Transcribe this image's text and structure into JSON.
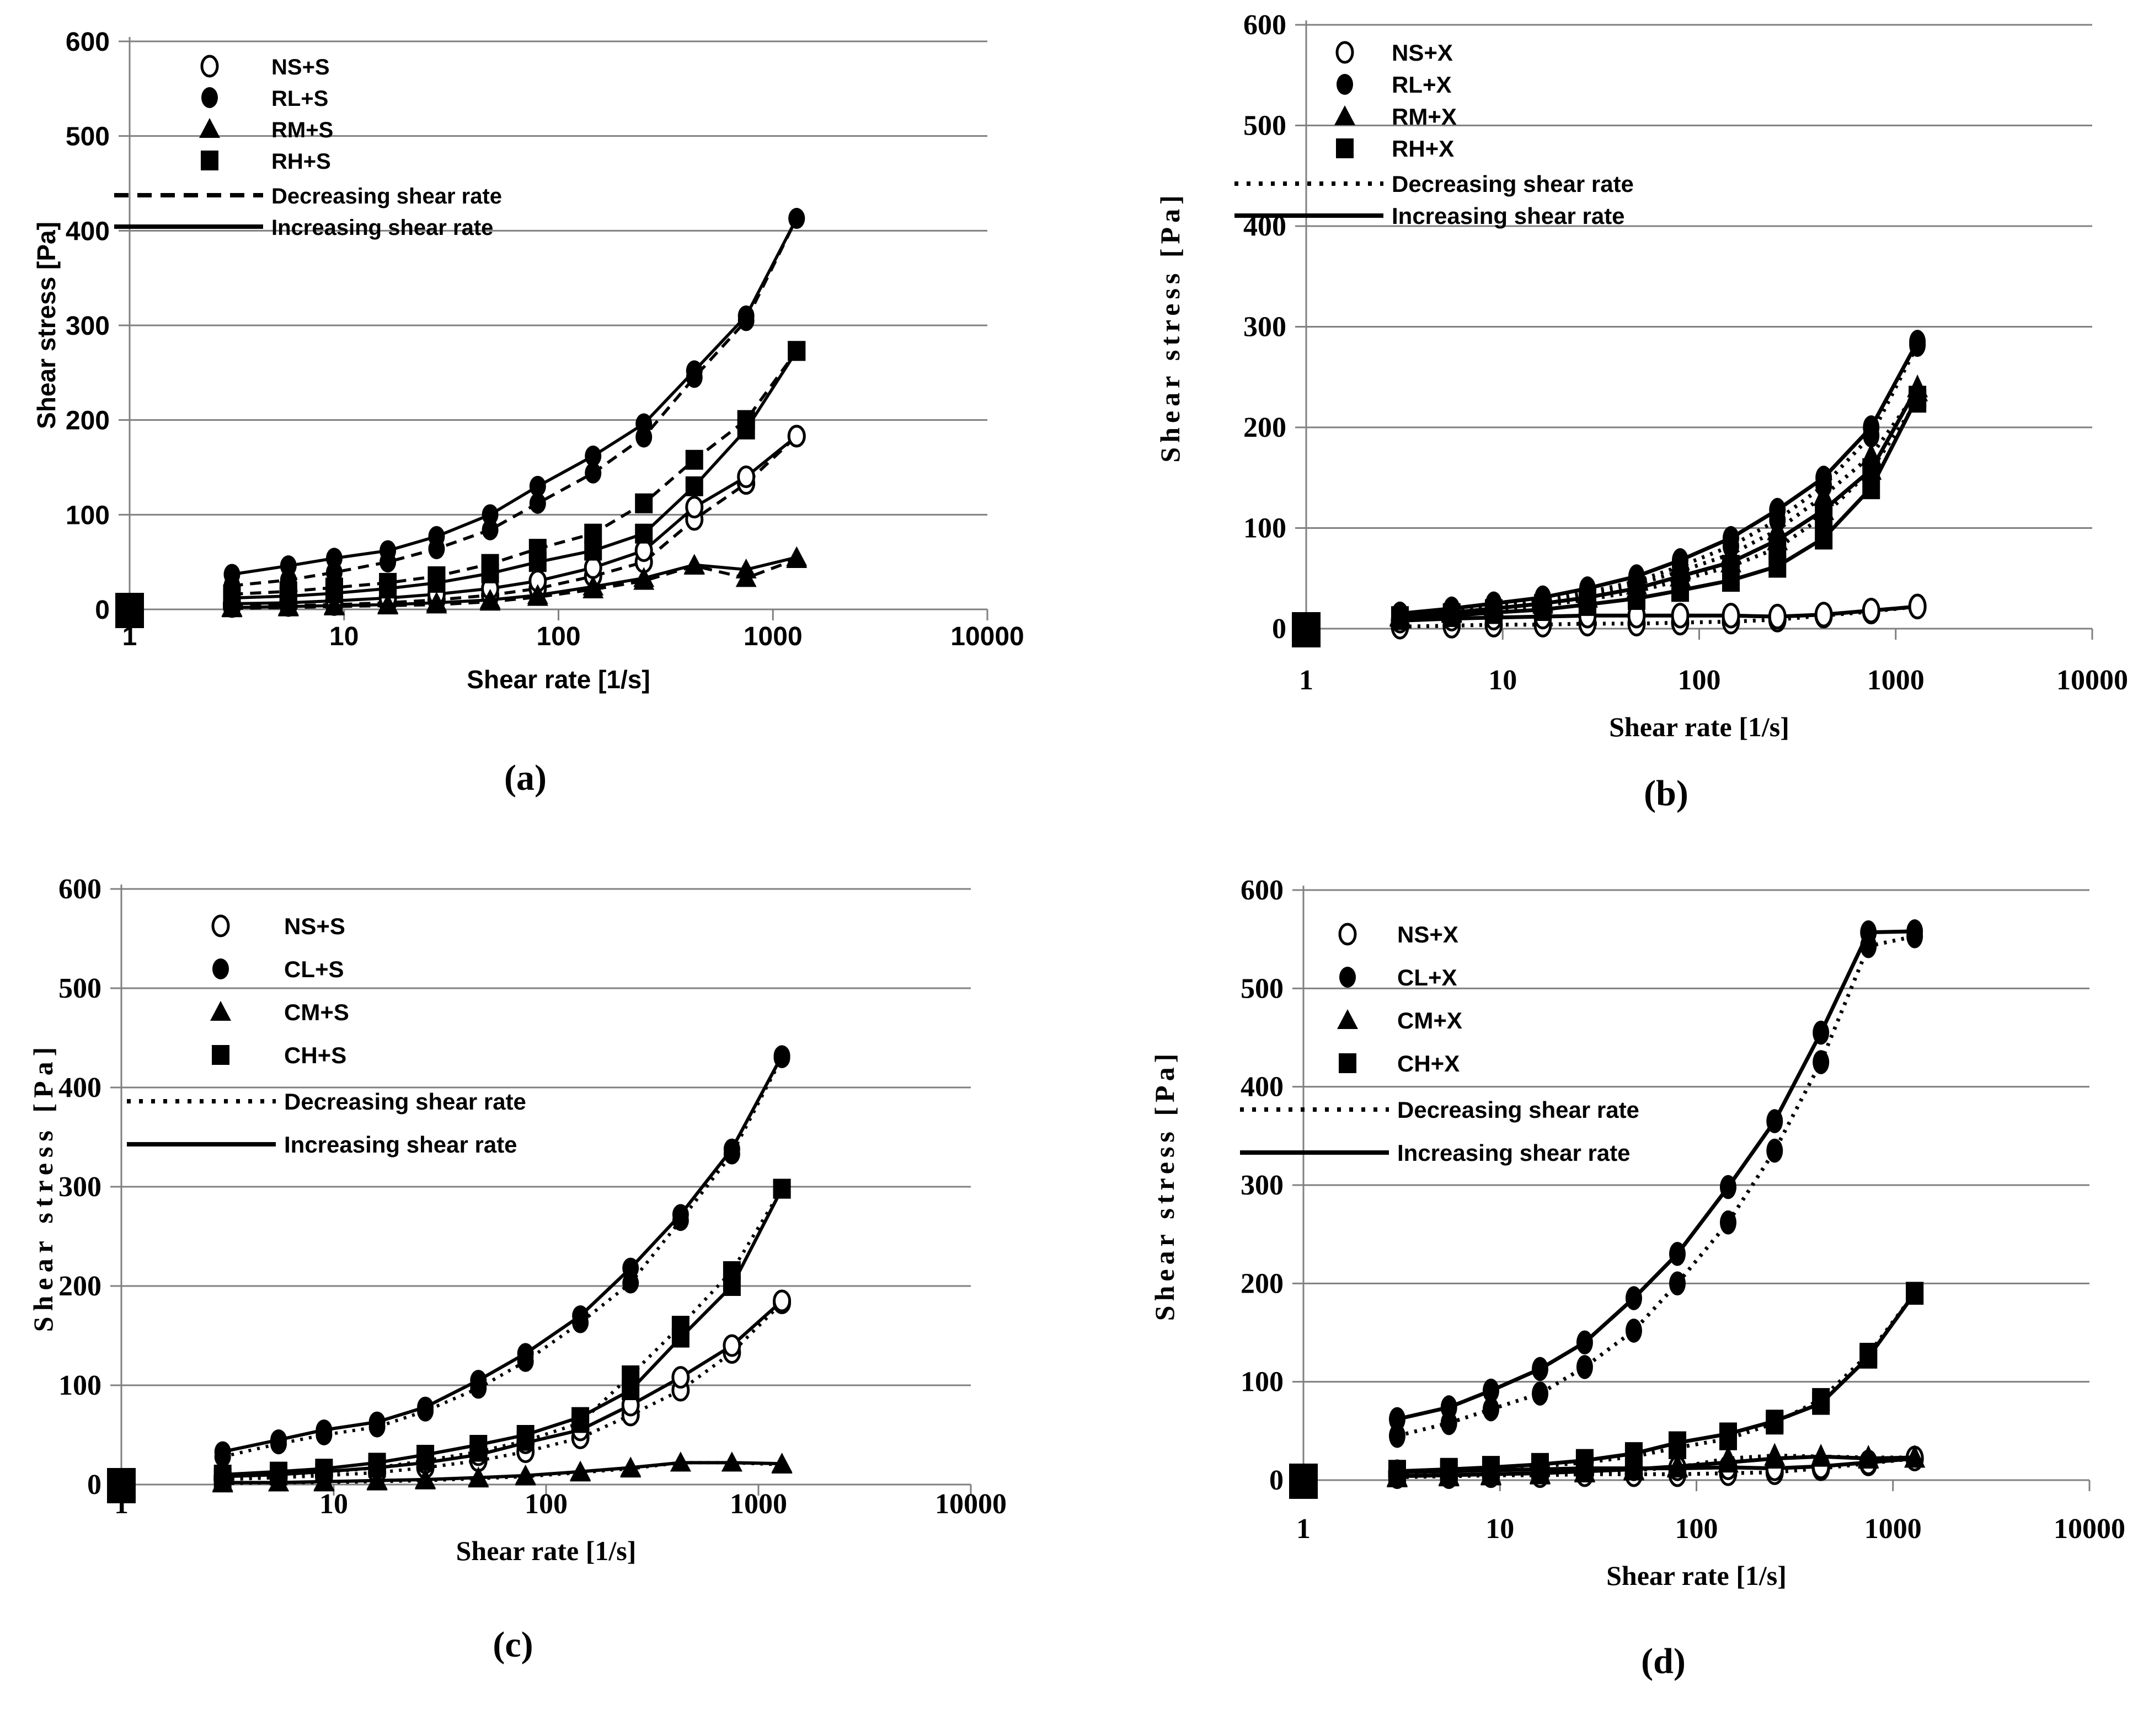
{
  "figure": {
    "background": "#ffffff",
    "line_color": "#000000",
    "grid_color": "#808080",
    "text_color": "#000000"
  },
  "chart_data": [
    {
      "type": "line",
      "panel_id": "a",
      "caption": "(a)",
      "xlabel": "Shear rate [1/s]",
      "ylabel": "Shear stress [Pa]",
      "xscale": "log",
      "xlim": [
        1,
        10000
      ],
      "ylim": [
        0,
        600
      ],
      "xticks": [
        1,
        10,
        100,
        1000,
        10000
      ],
      "yticks": [
        0,
        100,
        200,
        300,
        400,
        500,
        600
      ],
      "grid": "horizontal-only",
      "legend_position": "upper-left-inside",
      "legend_line_styles": [
        {
          "label": "Decreasing shear rate",
          "style": "dashed"
        },
        {
          "label": "Increasing shear rate",
          "style": "solid"
        }
      ],
      "x": [
        3,
        5.5,
        9,
        16,
        27,
        48,
        80,
        145,
        250,
        430,
        750,
        1290
      ],
      "origin_marker": {
        "x": 1,
        "y": 0,
        "marker": "square"
      },
      "series": [
        {
          "name": "NS+S",
          "marker": "circle-open",
          "increasing": [
            6,
            7,
            9,
            12,
            16,
            22,
            30,
            44,
            62,
            108,
            140,
            183
          ],
          "decreasing": [
            3,
            4,
            5,
            7,
            10,
            15,
            22,
            35,
            50,
            95,
            133,
            183
          ]
        },
        {
          "name": "RL+S",
          "marker": "circle",
          "increasing": [
            37,
            46,
            54,
            62,
            77,
            100,
            130,
            162,
            196,
            252,
            310,
            413
          ],
          "decreasing": [
            25,
            31,
            39,
            50,
            64,
            84,
            112,
            144,
            182,
            245,
            305,
            413
          ]
        },
        {
          "name": "RM+S",
          "marker": "triangle",
          "increasing": [
            2,
            3,
            4,
            5,
            7,
            10,
            15,
            24,
            33,
            47,
            42,
            55
          ],
          "decreasing": [
            1,
            2,
            3,
            4,
            5,
            8,
            13,
            21,
            30,
            46,
            33,
            53
          ]
        },
        {
          "name": "RH+S",
          "marker": "square",
          "increasing": [
            12,
            14,
            17,
            22,
            28,
            38,
            50,
            62,
            80,
            130,
            190,
            273
          ],
          "decreasing": [
            16,
            19,
            23,
            28,
            35,
            48,
            64,
            80,
            112,
            158,
            200,
            273
          ]
        }
      ]
    },
    {
      "type": "line",
      "panel_id": "b",
      "caption": "(b)",
      "xlabel": "Shear rate [1/s]",
      "ylabel": "Shear stress [Pa]",
      "xscale": "log",
      "xlim": [
        1,
        10000
      ],
      "ylim": [
        0,
        600
      ],
      "xticks": [
        1,
        10,
        100,
        1000,
        10000
      ],
      "yticks": [
        0,
        100,
        200,
        300,
        400,
        500,
        600
      ],
      "grid": "horizontal-only",
      "legend_position": "upper-left-inside",
      "legend_line_styles": [
        {
          "label": "Decreasing shear rate",
          "style": "dashed"
        },
        {
          "label": "Increasing shear rate",
          "style": "solid"
        }
      ],
      "x": [
        3,
        5.5,
        9,
        16,
        27,
        48,
        80,
        145,
        250,
        430,
        750,
        1290
      ],
      "origin_marker": {
        "x": 1,
        "y": 0,
        "marker": "square"
      },
      "series": [
        {
          "name": "NS+X",
          "marker": "circle-open",
          "increasing": [
            8,
            10,
            11,
            12,
            13,
            13,
            13,
            13,
            12,
            14,
            18,
            22
          ],
          "decreasing": [
            2,
            3,
            4,
            4,
            5,
            5,
            6,
            7,
            9,
            13,
            17,
            22
          ]
        },
        {
          "name": "RL+X",
          "marker": "circle",
          "increasing": [
            15,
            20,
            25,
            31,
            40,
            52,
            68,
            90,
            118,
            150,
            200,
            285
          ],
          "decreasing": [
            13,
            18,
            23,
            28,
            36,
            47,
            62,
            82,
            108,
            142,
            192,
            282
          ]
        },
        {
          "name": "RM+X",
          "marker": "triangle",
          "increasing": [
            12,
            16,
            20,
            25,
            31,
            40,
            52,
            66,
            88,
            118,
            158,
            240
          ],
          "decreasing": [
            13,
            17,
            22,
            27,
            34,
            44,
            57,
            74,
            98,
            132,
            172,
            236
          ]
        },
        {
          "name": "RH+X",
          "marker": "square",
          "increasing": [
            10,
            13,
            16,
            19,
            24,
            30,
            38,
            48,
            62,
            90,
            140,
            230
          ],
          "decreasing": [
            11,
            14,
            18,
            23,
            29,
            37,
            48,
            62,
            80,
            112,
            158,
            226
          ]
        }
      ]
    },
    {
      "type": "line",
      "panel_id": "c",
      "caption": "(c)",
      "xlabel": "Shear rate [1/s]",
      "ylabel": "Shear stress [Pa]",
      "xscale": "log",
      "xlim": [
        1,
        10000
      ],
      "ylim": [
        0,
        600
      ],
      "xticks": [
        1,
        10,
        100,
        1000,
        10000
      ],
      "yticks": [
        0,
        100,
        200,
        300,
        400,
        500,
        600
      ],
      "grid": "horizontal-only",
      "legend_position": "upper-left-inside",
      "legend_line_styles": [
        {
          "label": "Decreasing shear rate",
          "style": "dashed"
        },
        {
          "label": "Increasing shear rate",
          "style": "solid"
        }
      ],
      "x": [
        3,
        5.5,
        9,
        16,
        27,
        48,
        80,
        145,
        250,
        430,
        750,
        1290
      ],
      "origin_marker": {
        "x": 1,
        "y": 0,
        "marker": "square"
      },
      "series": [
        {
          "name": "NS+S",
          "marker": "circle-open",
          "increasing": [
            8,
            10,
            13,
            17,
            22,
            30,
            42,
            55,
            80,
            108,
            140,
            185
          ],
          "decreasing": [
            5,
            7,
            9,
            12,
            17,
            24,
            33,
            47,
            70,
            95,
            133,
            183
          ]
        },
        {
          "name": "CL+S",
          "marker": "circle",
          "increasing": [
            33,
            45,
            55,
            63,
            78,
            105,
            132,
            170,
            218,
            272,
            338,
            432
          ],
          "decreasing": [
            28,
            41,
            50,
            58,
            74,
            97,
            124,
            163,
            203,
            266,
            333,
            430
          ]
        },
        {
          "name": "CM+S",
          "marker": "triangle",
          "increasing": [
            2,
            2,
            3,
            4,
            5,
            7,
            9,
            13,
            17,
            22,
            22,
            21
          ],
          "decreasing": [
            1,
            2,
            2,
            3,
            4,
            6,
            8,
            12,
            16,
            22,
            22,
            20
          ]
        },
        {
          "name": "CH+S",
          "marker": "square",
          "increasing": [
            10,
            13,
            16,
            22,
            30,
            40,
            50,
            68,
            95,
            148,
            200,
            298
          ],
          "decreasing": [
            6,
            9,
            12,
            17,
            24,
            33,
            44,
            62,
            110,
            160,
            215,
            298
          ]
        }
      ]
    },
    {
      "type": "line",
      "panel_id": "d",
      "caption": "(d)",
      "xlabel": "Shear rate [1/s]",
      "ylabel": "Shear stress [Pa]",
      "xscale": "log",
      "xlim": [
        1,
        10000
      ],
      "ylim": [
        0,
        600
      ],
      "xticks": [
        1,
        10,
        100,
        1000,
        10000
      ],
      "yticks": [
        0,
        100,
        200,
        300,
        400,
        500,
        600
      ],
      "grid": "horizontal-only",
      "legend_position": "upper-left-inside",
      "legend_line_styles": [
        {
          "label": "Decreasing shear rate",
          "style": "dashed"
        },
        {
          "label": "Increasing shear rate",
          "style": "solid"
        }
      ],
      "x": [
        3,
        5.5,
        9,
        16,
        27,
        48,
        80,
        145,
        250,
        430,
        750,
        1290
      ],
      "origin_marker": {
        "x": 1,
        "y": 0,
        "marker": "square"
      },
      "series": [
        {
          "name": "NS+X",
          "marker": "circle-open",
          "increasing": [
            8,
            9,
            10,
            11,
            12,
            12,
            12,
            13,
            12,
            14,
            18,
            22
          ],
          "decreasing": [
            4,
            4,
            5,
            5,
            6,
            6,
            6,
            7,
            8,
            12,
            17,
            22
          ]
        },
        {
          "name": "CL+X",
          "marker": "circle",
          "increasing": [
            62,
            74,
            91,
            113,
            140,
            185,
            230,
            298,
            365,
            455,
            557,
            558
          ],
          "decreasing": [
            45,
            58,
            72,
            88,
            115,
            152,
            200,
            262,
            335,
            425,
            543,
            553
          ]
        },
        {
          "name": "CM+X",
          "marker": "triangle",
          "increasing": [
            4,
            5,
            6,
            7,
            9,
            11,
            14,
            18,
            22,
            24,
            22,
            23
          ],
          "decreasing": [
            3,
            4,
            5,
            6,
            8,
            10,
            13,
            22,
            25,
            24,
            23,
            23
          ]
        },
        {
          "name": "CH+X",
          "marker": "square",
          "increasing": [
            9,
            11,
            13,
            16,
            20,
            27,
            38,
            47,
            60,
            78,
            125,
            190
          ],
          "decreasing": [
            7,
            9,
            11,
            14,
            18,
            24,
            33,
            42,
            58,
            82,
            128,
            190
          ]
        }
      ]
    }
  ]
}
